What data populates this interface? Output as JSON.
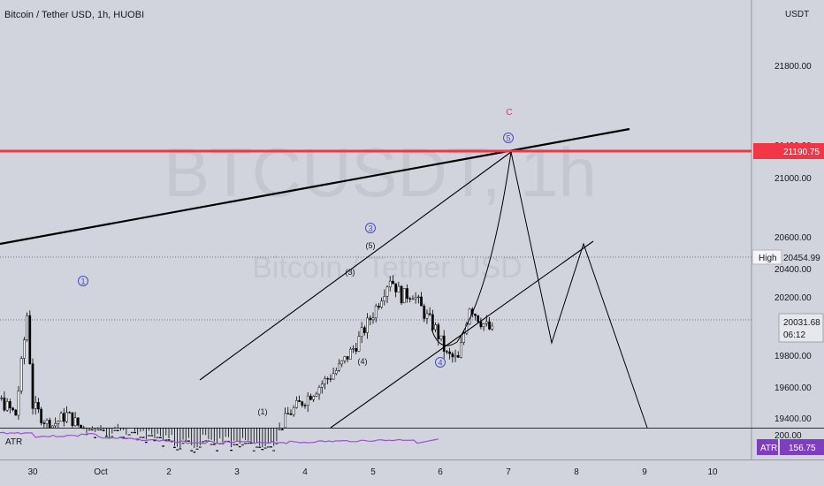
{
  "header": {
    "title": "Bitcoin / Tether USD, 1h, HUOBI"
  },
  "watermark": {
    "symbol": "BTCUSDT, 1h",
    "name": "Bitcoin / Tether USD"
  },
  "colors": {
    "background": "#d1d4dc",
    "candle": "#000000",
    "resistance_line": "#f23645",
    "wave_label": "#4a48c8",
    "c_label": "#e0316b",
    "atr_line": "#9c4fd8",
    "atr_badge": "#7e3fbf"
  },
  "price_scale": {
    "currency": "USDT",
    "ticks": [
      "21800.00",
      "21400.00",
      "21000.00",
      "20600.00",
      "20400.00",
      "20200.00",
      "19800.00",
      "19600.00",
      "19400.00"
    ],
    "badge_resistance": "21190.75",
    "high_label": "High",
    "high_value": "20454.99",
    "last_price": "20031.68",
    "countdown": "06:12",
    "atr_scale_tick": "200.00"
  },
  "time_axis": {
    "labels": [
      "30",
      "Oct",
      "2",
      "3",
      "4",
      "5",
      "6",
      "7",
      "8",
      "9",
      "10"
    ]
  },
  "indicator": {
    "name": "ATR",
    "badge_label": "ATR",
    "badge_value": "156.75"
  },
  "chart_data": {
    "type": "candlestick",
    "title": "Bitcoin / Tether USD, 1h, HUOBI",
    "y_unit": "USDT",
    "ylim": [
      19300,
      22100
    ],
    "x_range": [
      "Sep 29",
      "Oct 11"
    ],
    "resistance_level": 21190.75,
    "high_level": 20454.99,
    "last_price": 20031.68,
    "price_path": [
      [
        "Sep 29 00:00",
        19460
      ],
      [
        "Sep 29 06:00",
        19440
      ],
      [
        "Sep 29 12:00",
        19600
      ],
      [
        "Sep 29 18:00",
        19500
      ],
      [
        "Sep 29 22:00",
        20140
      ],
      [
        "Sep 30 00:00",
        19560
      ],
      [
        "Sep 30 06:00",
        19420
      ],
      [
        "Sep 30 12:00",
        19500
      ],
      [
        "Sep 30 18:00",
        19400
      ],
      [
        "Oct 1 00:00",
        19380
      ],
      [
        "Oct 1 12:00",
        19340
      ],
      [
        "Oct 2 00:00",
        19300
      ],
      [
        "Oct 3 12:00",
        19280
      ],
      [
        "Oct 3 18:00",
        19500
      ],
      [
        "Oct 4 00:00",
        19600
      ],
      [
        "Oct 4 06:00",
        19700
      ],
      [
        "Oct 4 12:00",
        19800
      ],
      [
        "Oct 4 18:00",
        19950
      ],
      [
        "Oct 5 00:00",
        20150
      ],
      [
        "Oct 5 06:00",
        20380
      ],
      [
        "Oct 5 10:00",
        20260
      ],
      [
        "Oct 5 14:00",
        20280
      ],
      [
        "Oct 5 18:00",
        20150
      ],
      [
        "Oct 5 22:00",
        20050
      ],
      [
        "Oct 6 02:00",
        19880
      ],
      [
        "Oct 6 06:00",
        19850
      ],
      [
        "Oct 6 10:00",
        20200
      ],
      [
        "Oct 6 14:00",
        20100
      ],
      [
        "Oct 6 18:00",
        20031.68
      ]
    ],
    "wave_labels": [
      {
        "label": "1",
        "x": "Sep 29 22:00",
        "y": 20220,
        "circled": true
      },
      {
        "label": "3",
        "x": "Oct 5 00:00",
        "y": 20650,
        "circled": true
      },
      {
        "label": "(5)",
        "x": "Oct 5 00:00",
        "y": 20500,
        "circled": false
      },
      {
        "label": "(3)",
        "x": "Oct 4 16:00",
        "y": 20330,
        "circled": false
      },
      {
        "label": "(4)",
        "x": "Oct 4 20:00",
        "y": 19780,
        "circled": false
      },
      {
        "label": "(1)",
        "x": "Oct 3 08:00",
        "y": 19440,
        "circled": false
      },
      {
        "label": "4",
        "x": "Oct 6 00:00",
        "y": 19770,
        "circled": true
      },
      {
        "label": "5",
        "x": "Oct 7 00:00",
        "y": 21280,
        "circled": true
      },
      {
        "label": "C",
        "x": "Oct 7 00:00",
        "y": 21420,
        "circled": false
      }
    ],
    "projection_path": [
      [
        "Oct 6 00:00",
        19950
      ],
      [
        "Oct 6 06:00",
        19860
      ],
      [
        "Oct 6 14:00",
        20100
      ],
      [
        "Oct 7 00:00",
        21200
      ],
      [
        "Oct 7 16:00",
        19880
      ],
      [
        "Oct 8 02:00",
        20520
      ],
      [
        "Oct 9 00:00",
        19300
      ]
    ],
    "trendlines": [
      {
        "name": "upper-channel",
        "from": [
          "Oct 2 12:00",
          19730
        ],
        "to": [
          "Oct 7 00:00",
          21200
        ]
      },
      {
        "name": "lower-channel",
        "from": [
          "Oct 4 08:00",
          19300
        ],
        "to": [
          "Oct 8 06:00",
          20550
        ]
      },
      {
        "name": "long-trendline",
        "from": [
          "Sep 29 00:00",
          20610
        ],
        "to": [
          "Oct 8 12:00",
          21330
        ]
      }
    ],
    "grid": false
  }
}
